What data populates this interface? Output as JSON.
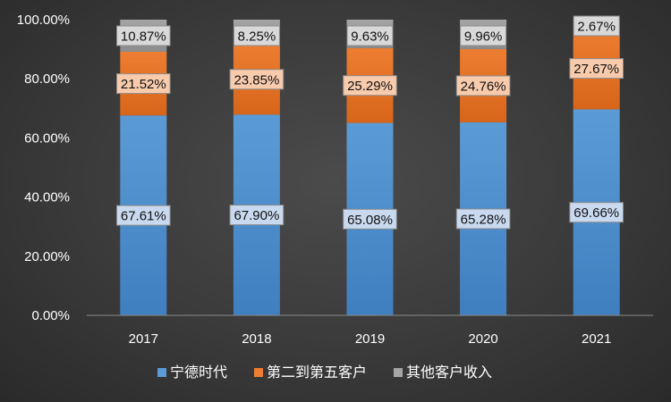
{
  "chart_data": {
    "type": "bar",
    "stacked": true,
    "categories": [
      "2017",
      "2018",
      "2019",
      "2020",
      "2021"
    ],
    "series": [
      {
        "name": "宁德时代",
        "values": [
          67.61,
          67.9,
          65.08,
          65.28,
          69.66
        ],
        "labels": [
          "67.61%",
          "67.90%",
          "65.08%",
          "65.28%",
          "69.66%"
        ],
        "color": "#5b9bd5",
        "color_dark": "#3f7fc0",
        "label_bg": "#c9daf0"
      },
      {
        "name": "第二到第五客户",
        "values": [
          21.52,
          23.85,
          25.29,
          24.76,
          27.67
        ],
        "labels": [
          "21.52%",
          "23.85%",
          "25.29%",
          "24.76%",
          "27.67%"
        ],
        "color": "#ed7d31",
        "color_dark": "#d8661a",
        "label_bg": "#f8cbad"
      },
      {
        "name": "其他客户收入",
        "values": [
          10.87,
          8.25,
          9.63,
          9.96,
          2.67
        ],
        "labels": [
          "10.87%",
          "8.25%",
          "9.63%",
          "9.96%",
          "2.67%"
        ],
        "color": "#a5a5a5",
        "color_dark": "#8c8c8c",
        "label_bg": "#d9d9d9"
      }
    ],
    "ylim": [
      0,
      100
    ],
    "yticks": [
      "0.00%",
      "20.00%",
      "40.00%",
      "60.00%",
      "80.00%",
      "100.00%"
    ],
    "legend_position": "bottom",
    "title": "",
    "xlabel": "",
    "ylabel": ""
  }
}
